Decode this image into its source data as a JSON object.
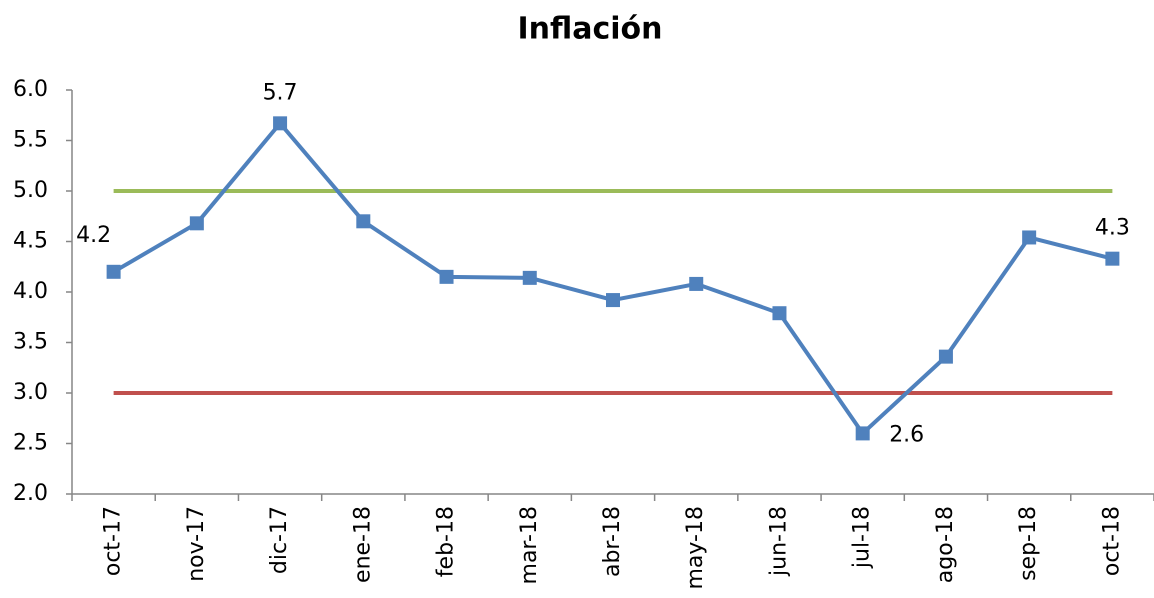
{
  "chart_data": {
    "type": "line",
    "title": "Inflación",
    "categories": [
      "oct-17",
      "nov-17",
      "dic-17",
      "ene-18",
      "feb-18",
      "mar-18",
      "abr-18",
      "may-18",
      "jun-18",
      "jul-18",
      "ago-18",
      "sep-18",
      "oct-18"
    ],
    "series": [
      {
        "color": "#4f81bd",
        "marker": "square",
        "values": [
          4.2,
          4.68,
          5.67,
          4.7,
          4.15,
          4.14,
          3.92,
          4.08,
          3.79,
          2.6,
          3.36,
          4.54,
          4.33
        ],
        "value_labels": [
          "4.2",
          null,
          "5.7",
          null,
          null,
          null,
          null,
          null,
          null,
          "2.6",
          null,
          null,
          "4.3"
        ]
      },
      {
        "color": "#9bbb59",
        "values": [
          5,
          5,
          5,
          5,
          5,
          5,
          5,
          5,
          5,
          5,
          5,
          5,
          5
        ]
      },
      {
        "color": "#c0504d",
        "values": [
          3,
          3,
          3,
          3,
          3,
          3,
          3,
          3,
          3,
          3,
          3,
          3,
          3
        ]
      }
    ],
    "ylim": [
      2,
      6
    ],
    "yticks": [
      {
        "value": 2,
        "label": "2.0"
      },
      {
        "value": 2.5,
        "label": "2.5"
      },
      {
        "value": 3,
        "label": "3.0"
      },
      {
        "value": 3.5,
        "label": "3.5"
      },
      {
        "value": 4,
        "label": "4.0"
      },
      {
        "value": 4.5,
        "label": "4.5"
      },
      {
        "value": 5,
        "label": "5.0"
      },
      {
        "value": 5.5,
        "label": "5.5"
      },
      {
        "value": 6,
        "label": "6.0"
      }
    ],
    "grid": false
  }
}
